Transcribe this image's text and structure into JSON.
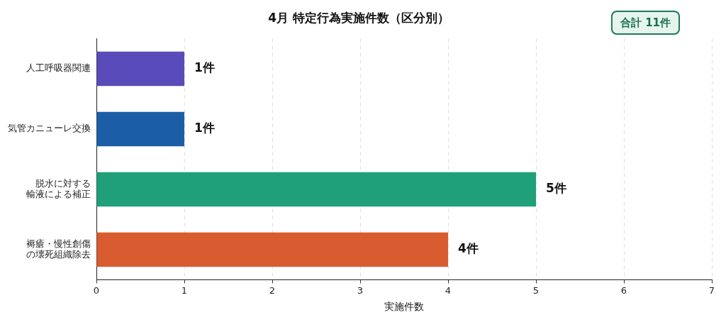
{
  "chart_data": {
    "type": "bar",
    "orientation": "horizontal",
    "title": "4月 特定行為実施件数（区分別）",
    "xlabel": "実施件数",
    "categories": [
      "人工呼吸器関連",
      "気管カニューレ交換",
      "脱水に対する輸液による補正",
      "褥瘡・慢性創傷の壊死組織除去"
    ],
    "values": [
      1,
      1,
      5,
      4
    ],
    "colors": [
      "#5a4bba",
      "#1c5ea6",
      "#1fa078",
      "#d95b30"
    ],
    "value_labels": [
      "1件",
      "1件",
      "5件",
      "4件"
    ],
    "xlim": [
      0,
      7
    ],
    "xticks": [
      0,
      1,
      2,
      3,
      4,
      5,
      6,
      7
    ],
    "grid": "x",
    "legend": false,
    "annotations": [
      "合計 11件"
    ]
  }
}
